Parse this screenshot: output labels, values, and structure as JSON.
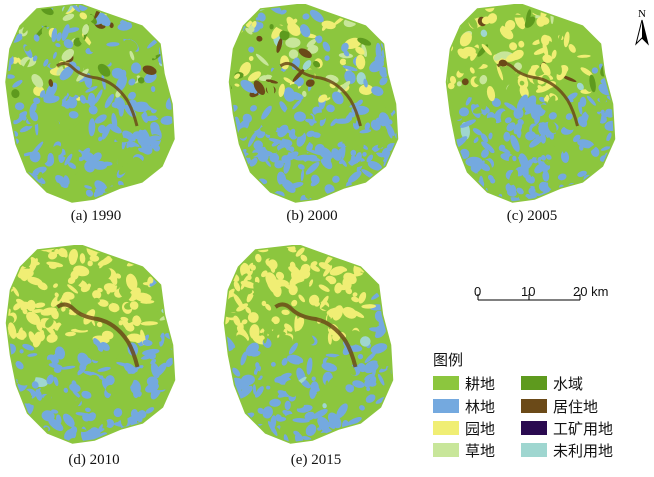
{
  "panels": [
    {
      "caption": "(a) 1990"
    },
    {
      "caption": "(b) 2000"
    },
    {
      "caption": "(c) 2005"
    },
    {
      "caption": "(d) 2010"
    },
    {
      "caption": "(e) 2015"
    }
  ],
  "north_arrow": {
    "label": "N"
  },
  "scale_bar": {
    "ticks": [
      "0",
      "10",
      "20 km"
    ]
  },
  "legend": {
    "title": "图例",
    "items": [
      {
        "label": "耕地",
        "color": "#8cc63e"
      },
      {
        "label": "林地",
        "color": "#74a9df"
      },
      {
        "label": "园地",
        "color": "#f0ee74"
      },
      {
        "label": "草地",
        "color": "#c8e69a"
      },
      {
        "label": "水域",
        "color": "#5e9a1e"
      },
      {
        "label": "居住地",
        "color": "#6b4a18"
      },
      {
        "label": "工矿用地",
        "color": "#2a0a50"
      },
      {
        "label": "未利用地",
        "color": "#9fd6d0"
      }
    ]
  }
}
